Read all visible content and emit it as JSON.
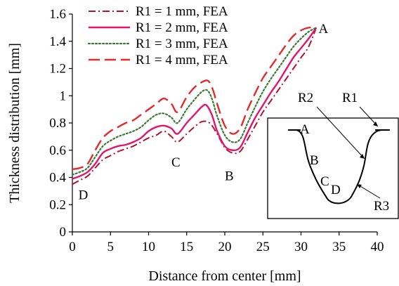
{
  "chart_data": {
    "type": "line",
    "xlabel": "Distance from center [mm]",
    "ylabel": "Thickness distribution [mm]",
    "xlim": [
      0,
      40
    ],
    "ylim": [
      0,
      1.6
    ],
    "x_ticks": [
      "0",
      "5",
      "10",
      "15",
      "20",
      "25",
      "30",
      "35",
      "40"
    ],
    "y_ticks": [
      "0",
      "0.2",
      "0.4",
      "0.6",
      "0.8",
      "1",
      "1.2",
      "1.4",
      "1.6"
    ],
    "grid": false,
    "legend_position": "top-left",
    "series": [
      {
        "name": "R1 = 1 mm, FEA",
        "color": "#b3132b",
        "dash": "dash-dot",
        "points": [
          [
            0,
            0.35
          ],
          [
            1,
            0.38
          ],
          [
            2,
            0.41
          ],
          [
            3,
            0.47
          ],
          [
            4,
            0.53
          ],
          [
            5,
            0.56
          ],
          [
            6,
            0.59
          ],
          [
            7,
            0.61
          ],
          [
            8,
            0.63
          ],
          [
            9,
            0.66
          ],
          [
            10,
            0.69
          ],
          [
            11,
            0.71
          ],
          [
            12,
            0.74
          ],
          [
            13,
            0.7
          ],
          [
            13.8,
            0.66
          ],
          [
            15,
            0.72
          ],
          [
            16,
            0.77
          ],
          [
            17,
            0.81
          ],
          [
            18,
            0.8
          ],
          [
            19,
            0.72
          ],
          [
            20,
            0.62
          ],
          [
            21,
            0.58
          ],
          [
            22,
            0.59
          ],
          [
            23,
            0.68
          ],
          [
            24,
            0.78
          ],
          [
            25,
            0.88
          ],
          [
            26,
            0.96
          ],
          [
            27,
            1.04
          ],
          [
            28,
            1.12
          ],
          [
            29,
            1.2
          ],
          [
            30,
            1.28
          ],
          [
            31,
            1.36
          ],
          [
            32,
            1.5
          ]
        ]
      },
      {
        "name": "R1 = 2 mm, FEA",
        "color": "#e2156b",
        "dash": "solid",
        "points": [
          [
            0,
            0.39
          ],
          [
            1,
            0.41
          ],
          [
            2,
            0.44
          ],
          [
            3,
            0.5
          ],
          [
            4,
            0.58
          ],
          [
            5,
            0.61
          ],
          [
            6,
            0.63
          ],
          [
            7,
            0.64
          ],
          [
            8,
            0.66
          ],
          [
            9,
            0.69
          ],
          [
            10,
            0.74
          ],
          [
            11,
            0.77
          ],
          [
            12,
            0.78
          ],
          [
            13,
            0.76
          ],
          [
            13.8,
            0.72
          ],
          [
            15,
            0.8
          ],
          [
            16,
            0.86
          ],
          [
            17,
            0.92
          ],
          [
            17.6,
            0.93
          ],
          [
            18.3,
            0.86
          ],
          [
            19,
            0.74
          ],
          [
            20,
            0.63
          ],
          [
            21,
            0.6
          ],
          [
            22,
            0.62
          ],
          [
            23,
            0.73
          ],
          [
            24,
            0.84
          ],
          [
            25,
            0.93
          ],
          [
            26,
            1.02
          ],
          [
            27,
            1.1
          ],
          [
            28,
            1.19
          ],
          [
            29,
            1.28
          ],
          [
            30,
            1.35
          ],
          [
            31,
            1.42
          ],
          [
            32,
            1.5
          ]
        ]
      },
      {
        "name": "R1 = 3 mm, FEA",
        "color": "#3a7a35",
        "dash": "dotted",
        "points": [
          [
            0,
            0.42
          ],
          [
            1,
            0.44
          ],
          [
            2,
            0.47
          ],
          [
            3,
            0.55
          ],
          [
            4,
            0.63
          ],
          [
            5,
            0.67
          ],
          [
            6,
            0.7
          ],
          [
            7,
            0.72
          ],
          [
            8,
            0.74
          ],
          [
            9,
            0.77
          ],
          [
            10,
            0.82
          ],
          [
            11,
            0.86
          ],
          [
            12,
            0.87
          ],
          [
            13,
            0.84
          ],
          [
            13.8,
            0.8
          ],
          [
            15,
            0.9
          ],
          [
            16,
            0.97
          ],
          [
            17,
            1.03
          ],
          [
            17.7,
            1.04
          ],
          [
            18.3,
            0.98
          ],
          [
            19,
            0.85
          ],
          [
            20,
            0.71
          ],
          [
            21,
            0.66
          ],
          [
            22,
            0.68
          ],
          [
            23,
            0.8
          ],
          [
            24,
            0.92
          ],
          [
            25,
            1.03
          ],
          [
            26,
            1.12
          ],
          [
            27,
            1.2
          ],
          [
            28,
            1.28
          ],
          [
            29,
            1.36
          ],
          [
            30,
            1.42
          ],
          [
            31,
            1.47
          ],
          [
            32,
            1.5
          ]
        ]
      },
      {
        "name": "R1 = 4 mm, FEA",
        "color": "#e32b2b",
        "dash": "long-dash",
        "points": [
          [
            0,
            0.46
          ],
          [
            1,
            0.47
          ],
          [
            2,
            0.5
          ],
          [
            3,
            0.6
          ],
          [
            4,
            0.69
          ],
          [
            5,
            0.74
          ],
          [
            6,
            0.77
          ],
          [
            7,
            0.8
          ],
          [
            8,
            0.82
          ],
          [
            9,
            0.86
          ],
          [
            10,
            0.9
          ],
          [
            11,
            0.94
          ],
          [
            12,
            0.98
          ],
          [
            13,
            0.94
          ],
          [
            13.8,
            0.88
          ],
          [
            15,
            0.99
          ],
          [
            16,
            1.06
          ],
          [
            17,
            1.1
          ],
          [
            17.8,
            1.11
          ],
          [
            18.4,
            1.05
          ],
          [
            19,
            0.94
          ],
          [
            20,
            0.78
          ],
          [
            21,
            0.72
          ],
          [
            22,
            0.76
          ],
          [
            23,
            0.9
          ],
          [
            24,
            1.02
          ],
          [
            25,
            1.13
          ],
          [
            26,
            1.21
          ],
          [
            27,
            1.29
          ],
          [
            28,
            1.37
          ],
          [
            29,
            1.44
          ],
          [
            30,
            1.48
          ],
          [
            31,
            1.5
          ],
          [
            32,
            1.5
          ]
        ]
      }
    ],
    "annotations": [
      {
        "text": "A",
        "x": 32.3,
        "y": 1.46
      },
      {
        "text": "B",
        "x": 20,
        "y": 0.38
      },
      {
        "text": "C",
        "x": 13,
        "y": 0.48
      },
      {
        "text": "D",
        "x": 0.8,
        "y": 0.24
      }
    ]
  },
  "inset": {
    "labels": {
      "a": "A",
      "b": "B",
      "c": "C",
      "d": "D",
      "r1": "R1",
      "r2": "R2",
      "r3": "R3"
    }
  }
}
